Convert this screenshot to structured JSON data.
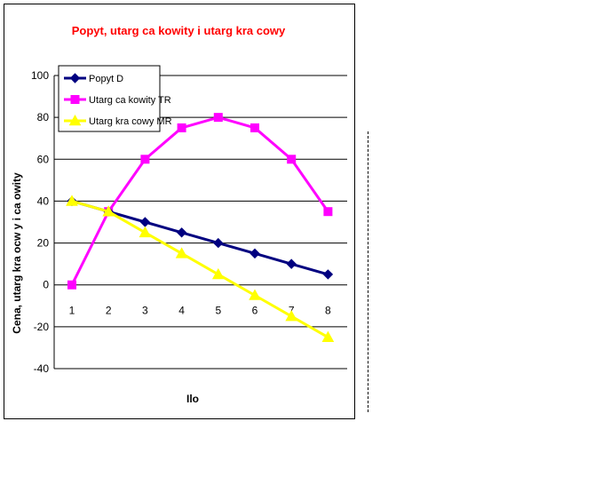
{
  "chart_data": {
    "type": "line",
    "title": "Popyt, utarg ca kowity i utarg kra  cowy",
    "xlabel": "Ilo",
    "ylabel": "Cena, utarg kra  ocw y i ca owity",
    "categories": [
      "1",
      "2",
      "3",
      "4",
      "5",
      "6",
      "7",
      "8"
    ],
    "ylim": [
      -40,
      100
    ],
    "yticks": [
      -40,
      -20,
      0,
      20,
      40,
      60,
      80,
      100
    ],
    "grid": true,
    "legend_position": "top-left",
    "series": [
      {
        "name": "Popyt D",
        "values": [
          40,
          35,
          30,
          25,
          20,
          15,
          10,
          5
        ],
        "color": "#000080",
        "marker": "diamond"
      },
      {
        "name": "Utarg ca kowity TR",
        "values": [
          0,
          35,
          60,
          75,
          80,
          75,
          60,
          35
        ],
        "color": "#ff00ff",
        "marker": "square"
      },
      {
        "name": "Utarg kra  cowy MR",
        "values": [
          40,
          35,
          25,
          15,
          5,
          -5,
          -15,
          -25
        ],
        "color": "#ffff00",
        "marker": "triangle"
      }
    ],
    "colors": {
      "title": "#ff0000",
      "grid": "#000000",
      "axis_text": "#000000"
    }
  }
}
